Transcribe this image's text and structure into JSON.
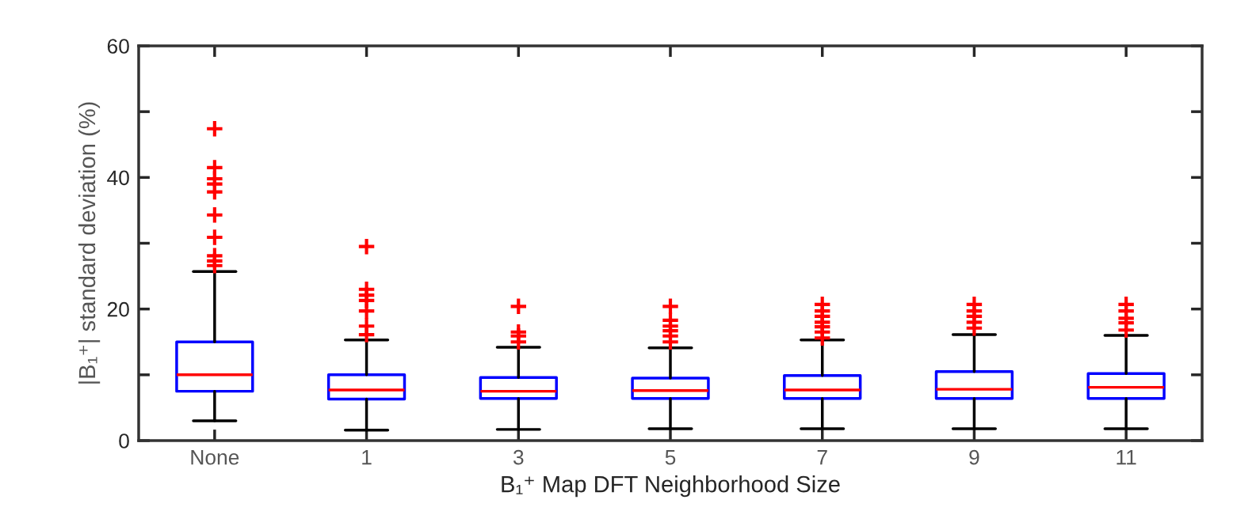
{
  "chart_data": {
    "type": "box",
    "xlabel": "B₁⁺ Map DFT Neighborhood Size",
    "ylabel": "|B₁⁺| standard deviation (%)",
    "categories": [
      "None",
      "1",
      "3",
      "5",
      "7",
      "9",
      "11"
    ],
    "ylim": [
      0,
      60
    ],
    "yticks": [
      0,
      {
        "value": 10,
        "label": null
      },
      20,
      {
        "value": 30,
        "label": null
      },
      40,
      {
        "value": 50,
        "label": null
      },
      60
    ],
    "marker": "cross",
    "series": [
      {
        "color": "#0000ff",
        "boxes": [
          {
            "low": 3.0,
            "q1": 7.5,
            "median": 10.0,
            "q3": 15.0,
            "high": 25.7,
            "outliers": [
              47.4,
              41.5,
              39.8,
              39.0,
              37.8,
              34.3,
              30.9,
              28.1,
              27.3,
              26.6
            ]
          },
          {
            "low": 1.6,
            "q1": 6.3,
            "median": 7.7,
            "q3": 10.0,
            "high": 15.3,
            "outliers": [
              29.5,
              23.0,
              22.1,
              21.3,
              19.7,
              17.4,
              16.1
            ]
          },
          {
            "low": 1.7,
            "q1": 6.4,
            "median": 7.5,
            "q3": 9.6,
            "high": 14.2,
            "outliers": [
              20.4,
              16.5,
              15.9,
              15.0
            ]
          },
          {
            "low": 1.8,
            "q1": 6.4,
            "median": 7.6,
            "q3": 9.5,
            "high": 14.1,
            "outliers": [
              20.4,
              18.3,
              17.4,
              16.7,
              15.9,
              15.0
            ]
          },
          {
            "low": 1.8,
            "q1": 6.4,
            "median": 7.7,
            "q3": 9.9,
            "high": 15.3,
            "outliers": [
              20.7,
              19.7,
              18.9,
              18.0,
              17.3,
              16.5,
              15.6
            ]
          },
          {
            "low": 1.8,
            "q1": 6.4,
            "median": 7.8,
            "q3": 10.5,
            "high": 16.1,
            "outliers": [
              20.7,
              19.7,
              18.9,
              18.0,
              17.1
            ]
          },
          {
            "low": 1.8,
            "q1": 6.4,
            "median": 8.1,
            "q3": 10.2,
            "high": 16.0,
            "outliers": [
              20.7,
              19.7,
              18.6,
              17.9,
              16.8
            ]
          }
        ]
      }
    ]
  }
}
